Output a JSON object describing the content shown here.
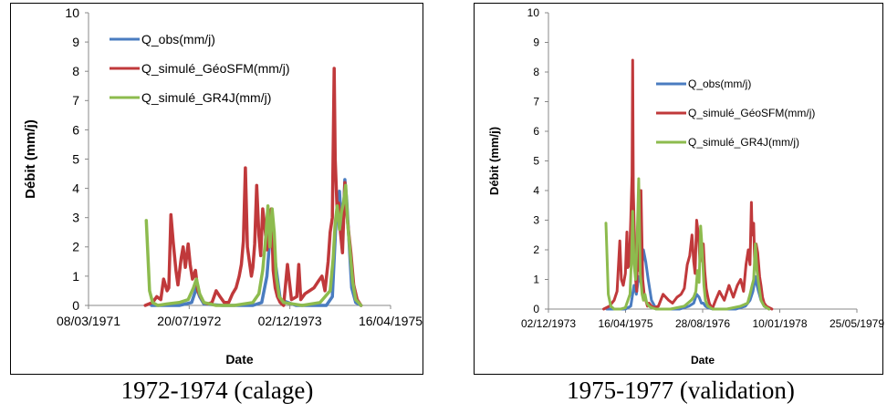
{
  "chart_data": [
    {
      "type": "line",
      "caption": "1972-1974 (calage)",
      "xlabel": "Date",
      "ylabel": "Débit (mm/j)",
      "x_ticks": [
        "08/03/1971",
        "20/07/1972",
        "02/12/1973",
        "16/04/1975"
      ],
      "ylim": [
        0,
        10
      ],
      "y_ticks": [
        "0",
        "1",
        "2",
        "3",
        "4",
        "5",
        "6",
        "7",
        "8",
        "9",
        "10"
      ],
      "grid": false,
      "legend_position": "top-left",
      "series": [
        {
          "name": "Q_obs(mm/j)",
          "color": "#4a7cc0",
          "x": [
            "1972-01-15",
            "1972-03-01",
            "1972-06-01",
            "1972-08-01",
            "1972-08-25",
            "1972-09-10",
            "1972-10-01",
            "1973-01-01",
            "1973-06-01",
            "1973-07-15",
            "1973-08-10",
            "1973-08-25",
            "1973-09-05",
            "1973-09-20",
            "1973-10-15",
            "1974-01-01",
            "1974-06-01",
            "1974-07-01",
            "1974-07-20",
            "1974-08-05",
            "1974-08-20",
            "1974-09-01",
            "1974-09-10",
            "1974-09-20",
            "1974-10-05",
            "1974-10-25",
            "1974-11-20"
          ],
          "values": [
            0,
            0,
            0,
            0.1,
            0.6,
            0.3,
            0.05,
            0,
            0,
            0.1,
            1.0,
            2.3,
            2.8,
            1.5,
            0.2,
            0,
            0,
            0.3,
            3.0,
            3.9,
            2.2,
            4.3,
            3.6,
            2.4,
            0.6,
            0.1,
            0
          ]
        },
        {
          "name": "Q_simulé_GéoSFM(mm/j)",
          "color": "#c0393b",
          "x": [
            "1971-12-15",
            "1972-01-20",
            "1972-02-10",
            "1972-03-01",
            "1972-03-15",
            "1972-04-01",
            "1972-04-10",
            "1972-04-20",
            "1972-05-01",
            "1972-05-15",
            "1972-05-25",
            "1972-06-10",
            "1972-06-20",
            "1972-07-01",
            "1972-07-15",
            "1972-07-25",
            "1972-08-05",
            "1972-08-20",
            "1972-09-01",
            "1972-09-15",
            "1972-10-01",
            "1972-10-20",
            "1972-11-10",
            "1972-12-01",
            "1972-12-20",
            "1973-01-10",
            "1973-02-01",
            "1973-02-20",
            "1973-03-10",
            "1973-03-25",
            "1973-04-05",
            "1973-04-15",
            "1973-04-25",
            "1973-05-05",
            "1973-05-15",
            "1973-05-25",
            "1973-06-01",
            "1973-06-10",
            "1973-06-20",
            "1973-07-01",
            "1973-07-10",
            "1973-07-20",
            "1973-08-01",
            "1973-08-10",
            "1973-08-20",
            "1973-09-01",
            "1973-09-10",
            "1973-09-20",
            "1973-10-01",
            "1973-10-15",
            "1973-11-01",
            "1973-11-20",
            "1973-12-10",
            "1974-01-05",
            "1974-01-15",
            "1974-01-25",
            "1974-02-15",
            "1974-03-10",
            "1974-04-01",
            "1974-04-20",
            "1974-05-10",
            "1974-05-25",
            "1974-06-10",
            "1974-06-20",
            "1974-07-01",
            "1974-07-10",
            "1974-07-15",
            "1974-07-25",
            "1974-08-01",
            "1974-08-10",
            "1974-08-20",
            "1974-09-01",
            "1974-09-10",
            "1974-09-20",
            "1974-10-01",
            "1974-10-15",
            "1974-11-01",
            "1974-11-20"
          ],
          "values": [
            0,
            0.1,
            0.3,
            0.2,
            0.9,
            0.5,
            0.6,
            3.1,
            2.2,
            1.2,
            0.7,
            1.6,
            2.0,
            1.3,
            2.1,
            1.4,
            0.9,
            1.2,
            0.5,
            0.3,
            0.1,
            0.05,
            0.1,
            0.5,
            0.3,
            0.1,
            0.1,
            0.4,
            0.6,
            1.0,
            1.4,
            2.2,
            4.7,
            2.0,
            1.5,
            1.0,
            1.3,
            2.1,
            4.1,
            2.4,
            1.7,
            3.3,
            2.6,
            1.9,
            2.9,
            3.3,
            1.2,
            0.6,
            0.3,
            0.1,
            0,
            1.4,
            0.2,
            0.3,
            1.4,
            0.2,
            0.4,
            0.5,
            0.6,
            0.8,
            1.0,
            0.5,
            1.5,
            2.5,
            3.0,
            8.1,
            5.0,
            3.2,
            3.5,
            2.5,
            1.8,
            4.2,
            3.2,
            2.5,
            1.8,
            0.7,
            0.2,
            0
          ]
        },
        {
          "name": "Q_simulé_GR4J(mm/j)",
          "color": "#8dbb4e",
          "x": [
            "1971-12-20",
            "1972-01-05",
            "1972-01-20",
            "1972-02-15",
            "1972-04-01",
            "1972-06-01",
            "1972-07-15",
            "1972-08-10",
            "1972-08-25",
            "1972-09-10",
            "1972-10-01",
            "1972-12-01",
            "1973-03-01",
            "1973-06-01",
            "1973-07-01",
            "1973-07-20",
            "1973-08-05",
            "1973-08-15",
            "1973-08-25",
            "1973-09-05",
            "1973-09-15",
            "1973-09-25",
            "1973-10-10",
            "1973-11-01",
            "1974-02-01",
            "1974-05-01",
            "1974-06-20",
            "1974-07-05",
            "1974-07-15",
            "1974-07-25",
            "1974-08-05",
            "1974-08-15",
            "1974-08-25",
            "1974-09-05",
            "1974-09-15",
            "1974-09-25",
            "1974-10-10",
            "1974-10-25",
            "1974-11-20"
          ],
          "values": [
            2.9,
            0.5,
            0.1,
            0,
            0.05,
            0.1,
            0.2,
            0.6,
            0.9,
            0.4,
            0.1,
            0,
            0,
            0.1,
            0.4,
            1.2,
            2.4,
            3.4,
            2.0,
            3.3,
            2.5,
            1.0,
            0.3,
            0.1,
            0,
            0.1,
            0.5,
            1.6,
            2.8,
            3.4,
            2.6,
            3.2,
            3.5,
            4.1,
            2.8,
            2.0,
            0.8,
            0.2,
            0
          ]
        }
      ]
    },
    {
      "type": "line",
      "caption": "1975-1977 (validation)",
      "xlabel": "Date",
      "ylabel": "Débit (mm/j)",
      "x_ticks": [
        "02/12/1973",
        "16/04/1975",
        "28/08/1976",
        "10/01/1978",
        "25/05/1979"
      ],
      "ylim": [
        0,
        10
      ],
      "y_ticks": [
        "0",
        "1",
        "2",
        "3",
        "4",
        "5",
        "6",
        "7",
        "8",
        "9",
        "10"
      ],
      "grid": false,
      "legend_position": "top-right",
      "series": [
        {
          "name": "Q_obs(mm/j)",
          "color": "#4a7cc0",
          "x": [
            "1974-12-15",
            "1975-03-01",
            "1975-04-15",
            "1975-05-20",
            "1975-06-10",
            "1975-06-25",
            "1975-07-10",
            "1975-07-25",
            "1975-08-10",
            "1975-08-25",
            "1975-09-10",
            "1975-10-01",
            "1975-11-01",
            "1976-04-01",
            "1976-06-01",
            "1976-07-01",
            "1976-07-20",
            "1976-08-05",
            "1976-08-20",
            "1976-09-01",
            "1976-09-15",
            "1976-10-01",
            "1976-11-01",
            "1977-04-01",
            "1977-06-01",
            "1977-07-01",
            "1977-07-20",
            "1977-08-05",
            "1977-08-15",
            "1977-08-25",
            "1977-09-10",
            "1977-10-01",
            "1977-11-01"
          ],
          "values": [
            0,
            0,
            0,
            0.1,
            0.8,
            0.5,
            1.1,
            0.9,
            2.0,
            1.6,
            1.0,
            0.3,
            0,
            0,
            0.1,
            0.2,
            0.5,
            0.4,
            0.2,
            0.2,
            0.1,
            0.05,
            0,
            0,
            0.1,
            0.3,
            0.6,
            1.1,
            0.8,
            0.6,
            0.3,
            0.1,
            0
          ]
        },
        {
          "name": "Q_simulé_GéoSFM(mm/j)",
          "color": "#c0393b",
          "x": [
            "1974-11-25",
            "1975-01-01",
            "1975-02-01",
            "1975-02-20",
            "1975-03-10",
            "1975-03-20",
            "1975-04-01",
            "1975-04-15",
            "1975-04-25",
            "1975-05-01",
            "1975-05-10",
            "1975-05-20",
            "1975-05-28",
            "1975-06-01",
            "1975-06-05",
            "1975-06-10",
            "1975-06-20",
            "1975-06-28",
            "1975-07-05",
            "1975-07-15",
            "1975-07-25",
            "1975-08-05",
            "1975-08-15",
            "1975-08-25",
            "1975-09-05",
            "1975-09-15",
            "1975-10-01",
            "1975-10-20",
            "1975-11-15",
            "1975-12-15",
            "1976-01-20",
            "1976-02-15",
            "1976-03-15",
            "1976-04-10",
            "1976-05-01",
            "1976-05-20",
            "1976-06-05",
            "1976-06-20",
            "1976-07-01",
            "1976-07-10",
            "1976-07-20",
            "1976-08-01",
            "1976-08-10",
            "1976-08-20",
            "1976-09-01",
            "1976-09-10",
            "1976-09-20",
            "1976-10-01",
            "1976-10-10",
            "1976-10-20",
            "1976-11-01",
            "1976-11-20",
            "1976-12-15",
            "1977-01-15",
            "1977-02-15",
            "1977-03-15",
            "1977-04-10",
            "1977-05-01",
            "1977-05-20",
            "1977-06-05",
            "1977-06-20",
            "1977-07-01",
            "1977-07-10",
            "1977-07-15",
            "1977-07-25",
            "1977-08-01",
            "1977-08-10",
            "1977-08-20",
            "1977-09-01",
            "1977-09-10",
            "1977-09-20",
            "1977-10-01",
            "1977-10-15",
            "1977-11-01",
            "1977-11-20"
          ],
          "values": [
            0,
            0.1,
            0.3,
            0.6,
            2.3,
            1.0,
            0.8,
            1.2,
            2.6,
            1.4,
            1.5,
            3.0,
            4.5,
            8.4,
            4.0,
            3.0,
            1.0,
            0.6,
            2.8,
            1.3,
            4.0,
            1.0,
            0.5,
            0.3,
            0.1,
            0.2,
            0.1,
            0.05,
            0.1,
            0.5,
            0.3,
            0.2,
            0.4,
            0.5,
            0.7,
            1.5,
            1.8,
            2.5,
            1.6,
            1.2,
            3.0,
            2.5,
            1.6,
            1.8,
            2.2,
            1.3,
            0.7,
            0.4,
            0.2,
            0.1,
            0.05,
            0.3,
            0.6,
            0.3,
            0.8,
            0.4,
            0.8,
            1.0,
            0.6,
            1.5,
            2.0,
            1.5,
            3.6,
            2.5,
            2.9,
            1.4,
            2.2,
            1.9,
            1.1,
            0.8,
            0.4,
            0.2,
            0.1,
            0.05,
            0
          ]
        },
        {
          "name": "Q_simulé_GR4J(mm/j)",
          "color": "#8dbb4e",
          "x": [
            "1974-12-10",
            "1974-12-25",
            "1975-01-10",
            "1975-02-01",
            "1975-03-15",
            "1975-04-15",
            "1975-05-15",
            "1975-05-25",
            "1975-06-01",
            "1975-06-10",
            "1975-06-20",
            "1975-07-01",
            "1975-07-10",
            "1975-07-20",
            "1975-08-01",
            "1975-08-10",
            "1975-08-20",
            "1975-09-01",
            "1975-09-15",
            "1975-10-01",
            "1975-11-01",
            "1976-02-01",
            "1976-05-01",
            "1976-06-15",
            "1976-07-01",
            "1976-07-15",
            "1976-07-25",
            "1976-08-05",
            "1976-08-15",
            "1976-08-25",
            "1976-09-05",
            "1976-09-15",
            "1976-10-01",
            "1976-11-01",
            "1977-02-01",
            "1977-05-01",
            "1977-06-15",
            "1977-07-01",
            "1977-07-15",
            "1977-07-25",
            "1977-08-05",
            "1977-08-15",
            "1977-08-25",
            "1977-09-10",
            "1977-10-01",
            "1977-11-01"
          ],
          "values": [
            2.9,
            0.5,
            0.1,
            0,
            0,
            0.05,
            0.5,
            1.8,
            3.3,
            1.5,
            1.0,
            2.5,
            4.4,
            1.2,
            0.5,
            0.3,
            0.5,
            0.2,
            0.1,
            0.05,
            0,
            0,
            0.1,
            0.3,
            0.4,
            0.6,
            1.3,
            0.9,
            2.8,
            2.0,
            0.8,
            0.3,
            0.1,
            0,
            0,
            0.1,
            0.2,
            0.5,
            0.8,
            1.0,
            2.2,
            1.3,
            0.9,
            0.3,
            0.1,
            0
          ]
        }
      ]
    }
  ]
}
